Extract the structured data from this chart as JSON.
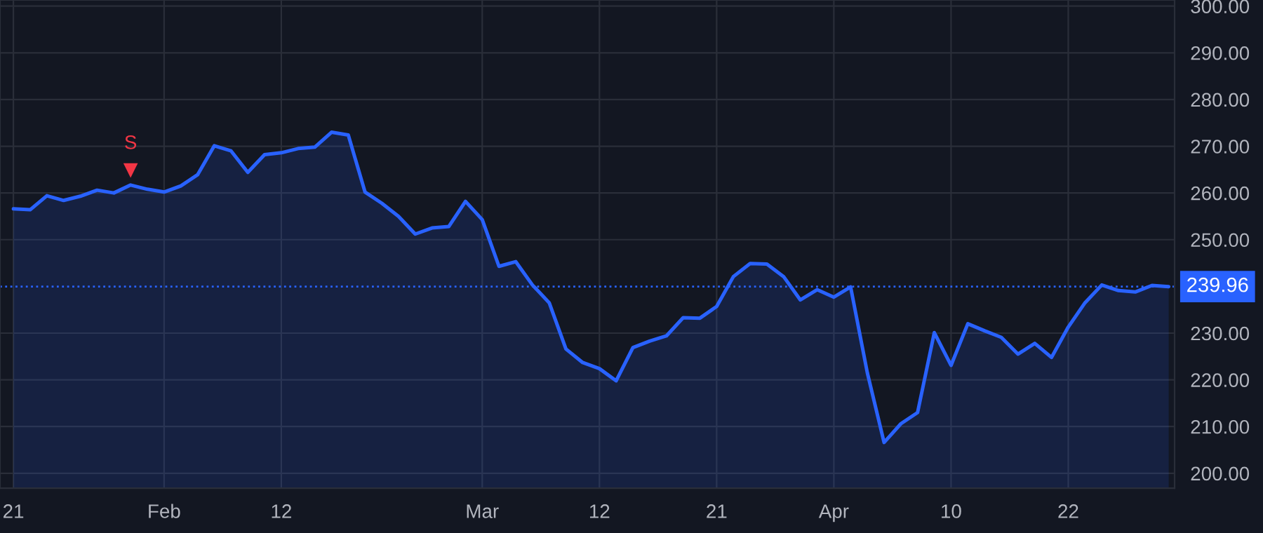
{
  "chart_data": {
    "type": "area",
    "categories": [
      "21",
      null,
      null,
      null,
      null,
      null,
      null,
      null,
      null,
      "Feb",
      null,
      null,
      null,
      null,
      null,
      null,
      "12",
      null,
      null,
      null,
      null,
      null,
      null,
      null,
      null,
      null,
      null,
      null,
      "Mar",
      null,
      null,
      null,
      null,
      null,
      null,
      "12",
      null,
      null,
      null,
      null,
      null,
      null,
      "21",
      null,
      null,
      null,
      null,
      null,
      null,
      "Apr",
      null,
      null,
      null,
      null,
      null,
      null,
      "10",
      null,
      null,
      null,
      null,
      null,
      null,
      "22",
      null,
      null,
      null,
      null,
      null,
      null
    ],
    "series": [
      {
        "color": "#2962ff",
        "values": [
          256.6,
          256.4,
          259.4,
          258.4,
          259.3,
          260.6,
          260.0,
          261.7,
          260.8,
          260.2,
          261.5,
          263.9,
          270.1,
          269.0,
          264.4,
          268.2,
          268.6,
          269.5,
          269.8,
          273.0,
          272.4,
          260.2,
          257.8,
          255.0,
          251.2,
          252.5,
          252.8,
          258.2,
          254.3,
          244.3,
          245.3,
          240.3,
          236.5,
          226.6,
          223.7,
          222.4,
          219.8,
          226.9,
          228.3,
          229.4,
          233.3,
          233.2,
          235.7,
          242.1,
          244.9,
          244.8,
          242.1,
          237.1,
          239.3,
          237.7,
          239.9,
          221.5,
          206.6,
          210.6,
          213.0,
          230.1,
          223.1,
          232.0,
          230.5,
          229.1,
          225.5,
          227.8,
          224.8,
          231.3,
          236.5,
          240.3,
          239.1,
          238.8,
          240.2,
          239.96
        ]
      },
      {
        "type": "scatter",
        "color": "#f23645",
        "marker": "triangle",
        "values": [
          null,
          null,
          null,
          null,
          null,
          null,
          null,
          264.8,
          null,
          null,
          null,
          null,
          null,
          null,
          null,
          null,
          null,
          null,
          null,
          null,
          null,
          null,
          null,
          null,
          null,
          null,
          null,
          null,
          null,
          null,
          null,
          null,
          null,
          null,
          null,
          null,
          null,
          null,
          null,
          null,
          null,
          null,
          null,
          null,
          null,
          null,
          null,
          null,
          null,
          null,
          null,
          null,
          null,
          null,
          null,
          null,
          null,
          null,
          null,
          null,
          null,
          null,
          null,
          null,
          null,
          null,
          null,
          null,
          null,
          null
        ],
        "value_labels": [
          null,
          null,
          null,
          null,
          null,
          null,
          null,
          "S",
          null,
          null,
          null,
          null,
          null,
          null,
          null,
          null,
          null,
          null,
          null,
          null,
          null,
          null,
          null,
          null,
          null,
          null,
          null,
          null,
          null,
          null,
          null,
          null,
          null,
          null,
          null,
          null,
          null,
          null,
          null,
          null,
          null,
          null,
          null,
          null,
          null,
          null,
          null,
          null,
          null,
          null,
          null,
          null,
          null,
          null,
          null,
          null,
          null,
          null,
          null,
          null,
          null,
          null,
          null,
          null,
          null,
          null,
          null,
          null,
          null,
          null
        ]
      }
    ],
    "ylim": [
      196.8,
      301.3
    ],
    "yticks": [
      {
        "value": 200,
        "label": "200.00"
      },
      {
        "value": 210,
        "label": "210.00"
      },
      {
        "value": 220,
        "label": "220.00"
      },
      {
        "value": 230,
        "label": "230.00"
      },
      {
        "value": 250,
        "label": "250.00"
      },
      {
        "value": 260,
        "label": "260.00"
      },
      {
        "value": 270,
        "label": "270.00"
      },
      {
        "value": 280,
        "label": "280.00"
      },
      {
        "value": 290,
        "label": "290.00"
      },
      {
        "value": 300,
        "label": "300.00"
      }
    ],
    "ref_lines": [
      {
        "axis": "y",
        "value": 239.96,
        "label": "239.96",
        "color": "#2962ff",
        "line_style": "dotted"
      }
    ],
    "grid": true,
    "legend": false
  }
}
